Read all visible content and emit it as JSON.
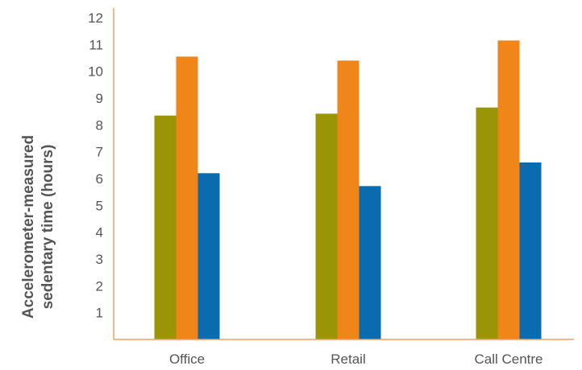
{
  "chart_data": {
    "type": "bar",
    "categories": [
      "Office",
      "Retail",
      "Call Centre"
    ],
    "series": [
      {
        "values": [
          8.35,
          8.42,
          8.65
        ]
      },
      {
        "values": [
          10.55,
          10.4,
          11.15
        ]
      },
      {
        "values": [
          6.2,
          5.72,
          6.6
        ]
      }
    ],
    "ylabel_lines": [
      "Accelerometer-measured",
      "sedentary time (hours)"
    ],
    "yticks": [
      1,
      2,
      3,
      4,
      5,
      6,
      7,
      8,
      9,
      10,
      11,
      12
    ],
    "ylim": [
      0,
      12.3
    ],
    "grid": false,
    "legend": "none"
  },
  "colors": {
    "axis": "#F0A060",
    "series": [
      "#9A9407",
      "#F08519",
      "#0A6BAE"
    ]
  }
}
